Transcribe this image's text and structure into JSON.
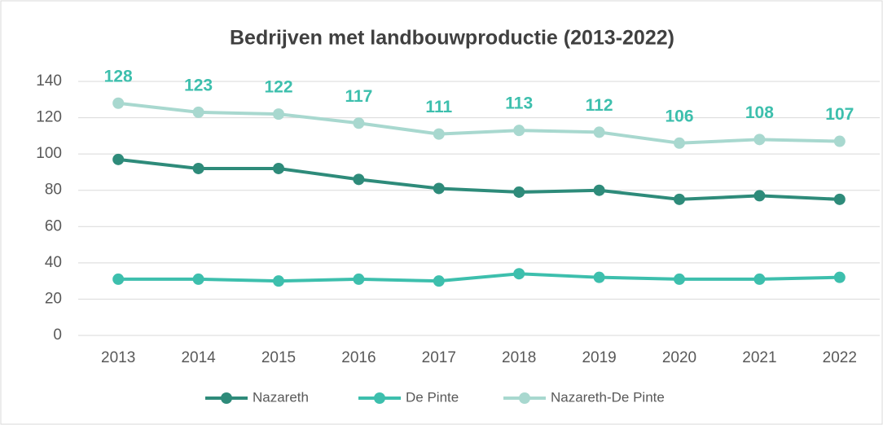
{
  "chart_data": {
    "type": "line",
    "title": "Bedrijven met landbouwproductie (2013-2022)",
    "categories": [
      "2013",
      "2014",
      "2015",
      "2016",
      "2017",
      "2018",
      "2019",
      "2020",
      "2021",
      "2022"
    ],
    "series": [
      {
        "name": "Nazareth",
        "color": "#2e8b7a",
        "values": [
          97,
          92,
          92,
          86,
          81,
          79,
          80,
          75,
          77,
          75
        ]
      },
      {
        "name": "De Pinte",
        "color": "#3dbfad",
        "values": [
          31,
          31,
          30,
          31,
          30,
          34,
          32,
          31,
          31,
          32
        ]
      },
      {
        "name": "Nazareth-De Pinte",
        "color": "#a8d8cf",
        "values": [
          128,
          123,
          122,
          117,
          111,
          113,
          112,
          106,
          108,
          107
        ],
        "show_value_labels": true,
        "label_color": "#3dbfad"
      }
    ],
    "ylim": [
      0,
      140
    ],
    "yticks": [
      0,
      20,
      40,
      60,
      80,
      100,
      120,
      140
    ],
    "grid": true,
    "legend": "bottom"
  }
}
